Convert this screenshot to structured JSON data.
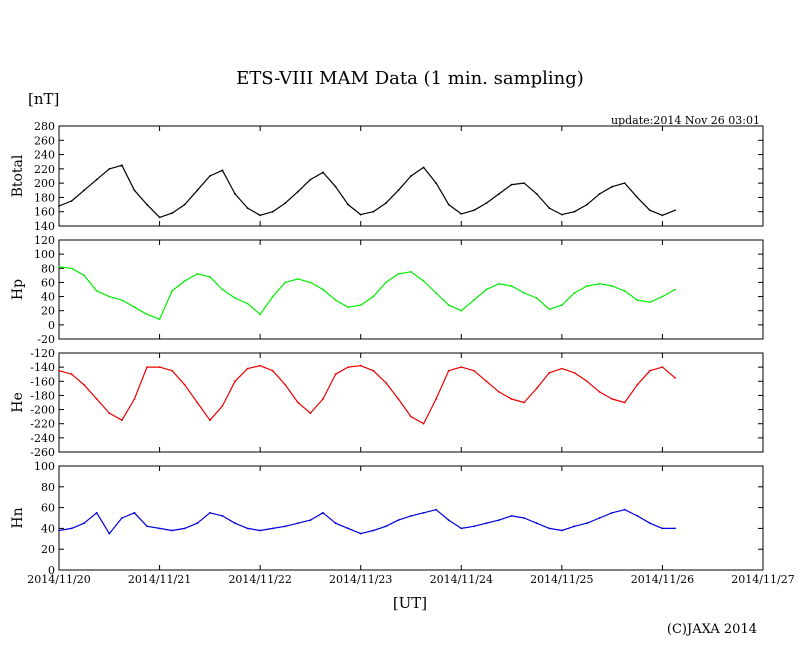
{
  "title": "ETS-VIII MAM Data (1 min. sampling)",
  "unit_label": "[nT]",
  "update_text": "update:2014 Nov 26 03:01",
  "x_axis_label": "[UT]",
  "credit": "(C)JAXA 2014",
  "x_tick_labels": [
    "2014/11/20",
    "2014/11/21",
    "2014/11/22",
    "2014/11/23",
    "2014/11/24",
    "2014/11/25",
    "2014/11/26",
    "2014/11/27"
  ],
  "colors": {
    "Btotal": "#000000",
    "Hp": "#00ee00",
    "He": "#ee0000",
    "Hn": "#0000dd"
  },
  "chart_data": [
    {
      "type": "line",
      "title": "",
      "ylabel": "Btotal",
      "ylim": [
        140,
        280
      ],
      "yticks": [
        140,
        160,
        180,
        200,
        220,
        240,
        260,
        280
      ],
      "xlim": [
        "2014/11/20",
        "2014/11/27"
      ],
      "grid": false,
      "series": [
        {
          "color": "#000000",
          "x": [
            "2014/11/20 00:00",
            "2014/11/20 03:00",
            "2014/11/20 06:00",
            "2014/11/20 09:00",
            "2014/11/20 12:00",
            "2014/11/20 15:00",
            "2014/11/20 18:00",
            "2014/11/20 21:00",
            "2014/11/21 00:00",
            "2014/11/21 03:00",
            "2014/11/21 06:00",
            "2014/11/21 09:00",
            "2014/11/21 12:00",
            "2014/11/21 15:00",
            "2014/11/21 18:00",
            "2014/11/21 21:00",
            "2014/11/22 00:00",
            "2014/11/22 03:00",
            "2014/11/22 06:00",
            "2014/11/22 09:00",
            "2014/11/22 12:00",
            "2014/11/22 15:00",
            "2014/11/22 18:00",
            "2014/11/22 21:00",
            "2014/11/23 00:00",
            "2014/11/23 03:00",
            "2014/11/23 06:00",
            "2014/11/23 09:00",
            "2014/11/23 12:00",
            "2014/11/23 15:00",
            "2014/11/23 18:00",
            "2014/11/23 21:00",
            "2014/11/24 00:00",
            "2014/11/24 03:00",
            "2014/11/24 06:00",
            "2014/11/24 09:00",
            "2014/11/24 12:00",
            "2014/11/24 15:00",
            "2014/11/24 18:00",
            "2014/11/24 21:00",
            "2014/11/25 00:00",
            "2014/11/25 03:00",
            "2014/11/25 06:00",
            "2014/11/25 09:00",
            "2014/11/25 12:00",
            "2014/11/25 15:00",
            "2014/11/25 18:00",
            "2014/11/25 21:00",
            "2014/11/26 00:00",
            "2014/11/26 03:00"
          ],
          "values": [
            168,
            175,
            190,
            205,
            220,
            225,
            190,
            170,
            152,
            158,
            170,
            190,
            210,
            218,
            185,
            165,
            155,
            160,
            172,
            188,
            205,
            215,
            195,
            170,
            156,
            160,
            172,
            190,
            210,
            222,
            200,
            170,
            157,
            162,
            172,
            185,
            198,
            200,
            185,
            165,
            156,
            160,
            170,
            185,
            195,
            200,
            180,
            162,
            155,
            162
          ]
        }
      ]
    },
    {
      "type": "line",
      "title": "",
      "ylabel": "Hp",
      "ylim": [
        -20,
        120
      ],
      "yticks": [
        -20,
        0,
        20,
        40,
        60,
        80,
        100,
        120
      ],
      "xlim": [
        "2014/11/20",
        "2014/11/27"
      ],
      "grid": false,
      "series": [
        {
          "color": "#00ee00",
          "x": [
            "2014/11/20 00:00",
            "2014/11/20 03:00",
            "2014/11/20 06:00",
            "2014/11/20 09:00",
            "2014/11/20 12:00",
            "2014/11/20 15:00",
            "2014/11/20 18:00",
            "2014/11/20 21:00",
            "2014/11/21 00:00",
            "2014/11/21 03:00",
            "2014/11/21 06:00",
            "2014/11/21 09:00",
            "2014/11/21 12:00",
            "2014/11/21 15:00",
            "2014/11/21 18:00",
            "2014/11/21 21:00",
            "2014/11/22 00:00",
            "2014/11/22 03:00",
            "2014/11/22 06:00",
            "2014/11/22 09:00",
            "2014/11/22 12:00",
            "2014/11/22 15:00",
            "2014/11/22 18:00",
            "2014/11/22 21:00",
            "2014/11/23 00:00",
            "2014/11/23 03:00",
            "2014/11/23 06:00",
            "2014/11/23 09:00",
            "2014/11/23 12:00",
            "2014/11/23 15:00",
            "2014/11/23 18:00",
            "2014/11/23 21:00",
            "2014/11/24 00:00",
            "2014/11/24 03:00",
            "2014/11/24 06:00",
            "2014/11/24 09:00",
            "2014/11/24 12:00",
            "2014/11/24 15:00",
            "2014/11/24 18:00",
            "2014/11/24 21:00",
            "2014/11/25 00:00",
            "2014/11/25 03:00",
            "2014/11/25 06:00",
            "2014/11/25 09:00",
            "2014/11/25 12:00",
            "2014/11/25 15:00",
            "2014/11/25 18:00",
            "2014/11/25 21:00",
            "2014/11/26 00:00",
            "2014/11/26 03:00"
          ],
          "values": [
            82,
            80,
            70,
            48,
            40,
            35,
            25,
            15,
            8,
            48,
            62,
            72,
            68,
            50,
            38,
            30,
            15,
            40,
            60,
            65,
            60,
            50,
            35,
            25,
            28,
            40,
            60,
            72,
            75,
            62,
            45,
            28,
            20,
            35,
            50,
            58,
            55,
            45,
            38,
            22,
            28,
            45,
            55,
            58,
            55,
            48,
            35,
            32,
            40,
            50
          ]
        }
      ]
    },
    {
      "type": "line",
      "title": "",
      "ylabel": "He",
      "ylim": [
        -260,
        -120
      ],
      "yticks": [
        -260,
        -240,
        -220,
        -200,
        -180,
        -160,
        -140,
        -120
      ],
      "xlim": [
        "2014/11/20",
        "2014/11/27"
      ],
      "grid": false,
      "series": [
        {
          "color": "#ee0000",
          "x": [
            "2014/11/20 00:00",
            "2014/11/20 03:00",
            "2014/11/20 06:00",
            "2014/11/20 09:00",
            "2014/11/20 12:00",
            "2014/11/20 15:00",
            "2014/11/20 18:00",
            "2014/11/20 21:00",
            "2014/11/21 00:00",
            "2014/11/21 03:00",
            "2014/11/21 06:00",
            "2014/11/21 09:00",
            "2014/11/21 12:00",
            "2014/11/21 15:00",
            "2014/11/21 18:00",
            "2014/11/21 21:00",
            "2014/11/22 00:00",
            "2014/11/22 03:00",
            "2014/11/22 06:00",
            "2014/11/22 09:00",
            "2014/11/22 12:00",
            "2014/11/22 15:00",
            "2014/11/22 18:00",
            "2014/11/22 21:00",
            "2014/11/23 00:00",
            "2014/11/23 03:00",
            "2014/11/23 06:00",
            "2014/11/23 09:00",
            "2014/11/23 12:00",
            "2014/11/23 15:00",
            "2014/11/23 18:00",
            "2014/11/23 21:00",
            "2014/11/24 00:00",
            "2014/11/24 03:00",
            "2014/11/24 06:00",
            "2014/11/24 09:00",
            "2014/11/24 12:00",
            "2014/11/24 15:00",
            "2014/11/24 18:00",
            "2014/11/24 21:00",
            "2014/11/25 00:00",
            "2014/11/25 03:00",
            "2014/11/25 06:00",
            "2014/11/25 09:00",
            "2014/11/25 12:00",
            "2014/11/25 15:00",
            "2014/11/25 18:00",
            "2014/11/25 21:00",
            "2014/11/26 00:00",
            "2014/11/26 03:00"
          ],
          "values": [
            -145,
            -150,
            -165,
            -185,
            -205,
            -215,
            -185,
            -140,
            -140,
            -145,
            -165,
            -190,
            -215,
            -195,
            -160,
            -142,
            -138,
            -145,
            -165,
            -190,
            -205,
            -185,
            -150,
            -140,
            -138,
            -145,
            -162,
            -185,
            -210,
            -220,
            -185,
            -145,
            -140,
            -145,
            -160,
            -175,
            -185,
            -190,
            -170,
            -148,
            -142,
            -148,
            -160,
            -175,
            -185,
            -190,
            -165,
            -145,
            -140,
            -155
          ]
        }
      ]
    },
    {
      "type": "line",
      "title": "",
      "ylabel": "Hn",
      "ylim": [
        0,
        100
      ],
      "yticks": [
        0,
        20,
        40,
        60,
        80,
        100
      ],
      "xlim": [
        "2014/11/20",
        "2014/11/27"
      ],
      "grid": false,
      "series": [
        {
          "color": "#0000dd",
          "x": [
            "2014/11/20 00:00",
            "2014/11/20 03:00",
            "2014/11/20 06:00",
            "2014/11/20 09:00",
            "2014/11/20 12:00",
            "2014/11/20 15:00",
            "2014/11/20 18:00",
            "2014/11/20 21:00",
            "2014/11/21 00:00",
            "2014/11/21 03:00",
            "2014/11/21 06:00",
            "2014/11/21 09:00",
            "2014/11/21 12:00",
            "2014/11/21 15:00",
            "2014/11/21 18:00",
            "2014/11/21 21:00",
            "2014/11/22 00:00",
            "2014/11/22 03:00",
            "2014/11/22 06:00",
            "2014/11/22 09:00",
            "2014/11/22 12:00",
            "2014/11/22 15:00",
            "2014/11/22 18:00",
            "2014/11/22 21:00",
            "2014/11/23 00:00",
            "2014/11/23 03:00",
            "2014/11/23 06:00",
            "2014/11/23 09:00",
            "2014/11/23 12:00",
            "2014/11/23 15:00",
            "2014/11/23 18:00",
            "2014/11/23 21:00",
            "2014/11/24 00:00",
            "2014/11/24 03:00",
            "2014/11/24 06:00",
            "2014/11/24 09:00",
            "2014/11/24 12:00",
            "2014/11/24 15:00",
            "2014/11/24 18:00",
            "2014/11/24 21:00",
            "2014/11/25 00:00",
            "2014/11/25 03:00",
            "2014/11/25 06:00",
            "2014/11/25 09:00",
            "2014/11/25 12:00",
            "2014/11/25 15:00",
            "2014/11/25 18:00",
            "2014/11/25 21:00",
            "2014/11/26 00:00",
            "2014/11/26 03:00"
          ],
          "values": [
            38,
            40,
            45,
            55,
            35,
            50,
            55,
            42,
            40,
            38,
            40,
            45,
            55,
            52,
            45,
            40,
            38,
            40,
            42,
            45,
            48,
            55,
            45,
            40,
            35,
            38,
            42,
            48,
            52,
            55,
            58,
            48,
            40,
            42,
            45,
            48,
            52,
            50,
            45,
            40,
            38,
            42,
            45,
            50,
            55,
            58,
            52,
            45,
            40,
            40
          ]
        }
      ]
    }
  ]
}
